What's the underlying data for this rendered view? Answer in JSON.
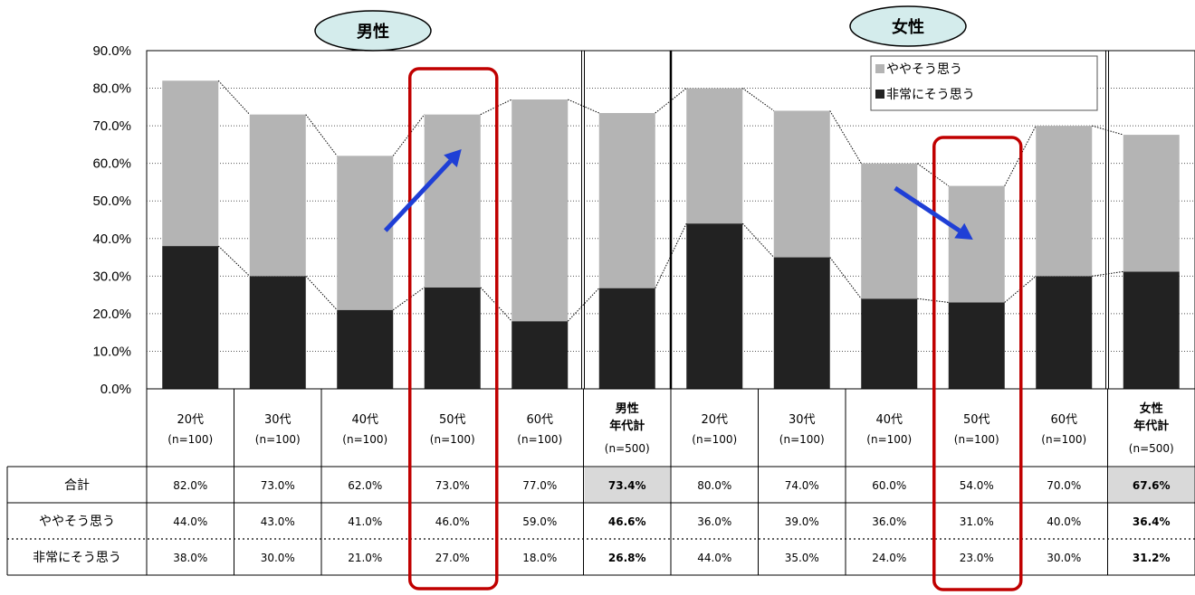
{
  "groups": [
    {
      "label": "男性",
      "total_label_line1": "男性",
      "total_label_line2": "年代計",
      "total_n": "(n=500)"
    },
    {
      "label": "女性",
      "total_label_line1": "女性",
      "total_label_line2": "年代計",
      "total_n": "(n=500)"
    }
  ],
  "legend": [
    {
      "label": "ややそう思う",
      "color": "#b4b4b4"
    },
    {
      "label": "非常にそう思う",
      "color": "#222222"
    }
  ],
  "row_labels": [
    "合計",
    "ややそう思う",
    "非常にそう思う"
  ],
  "colors": {
    "light": "#b4b4b4",
    "dark": "#222222",
    "highlight_border": "#c00000",
    "arrow": "#1f3fd6",
    "group_fill": "#d4ecec",
    "total_cell_fill": "#d9d9d9"
  },
  "chart_data": {
    "type": "bar",
    "stacked": true,
    "ylim": [
      0,
      90
    ],
    "yticks": [
      "0.0%",
      "10.0%",
      "20.0%",
      "30.0%",
      "40.0%",
      "50.0%",
      "60.0%",
      "70.0%",
      "80.0%",
      "90.0%"
    ],
    "categories": [
      {
        "age": "20代",
        "n": "(n=100)",
        "group": "男性"
      },
      {
        "age": "30代",
        "n": "(n=100)",
        "group": "男性"
      },
      {
        "age": "40代",
        "n": "(n=100)",
        "group": "男性"
      },
      {
        "age": "50代",
        "n": "(n=100)",
        "group": "男性"
      },
      {
        "age": "60代",
        "n": "(n=100)",
        "group": "男性"
      },
      {
        "age": "",
        "n": "",
        "group": "男性",
        "is_total": true
      },
      {
        "age": "20代",
        "n": "(n=100)",
        "group": "女性"
      },
      {
        "age": "30代",
        "n": "(n=100)",
        "group": "女性"
      },
      {
        "age": "40代",
        "n": "(n=100)",
        "group": "女性"
      },
      {
        "age": "50代",
        "n": "(n=100)",
        "group": "女性"
      },
      {
        "age": "60代",
        "n": "(n=100)",
        "group": "女性"
      },
      {
        "age": "",
        "n": "",
        "group": "女性",
        "is_total": true
      }
    ],
    "series": [
      {
        "name": "非常にそう思う",
        "values": [
          38.0,
          30.0,
          21.0,
          27.0,
          18.0,
          26.8,
          44.0,
          35.0,
          24.0,
          23.0,
          30.0,
          31.2
        ]
      },
      {
        "name": "ややそう思う",
        "values": [
          44.0,
          43.0,
          41.0,
          46.0,
          59.0,
          46.6,
          36.0,
          39.0,
          36.0,
          31.0,
          40.0,
          36.4
        ]
      }
    ],
    "table": {
      "合計": [
        "82.0%",
        "73.0%",
        "62.0%",
        "73.0%",
        "77.0%",
        "73.4%",
        "80.0%",
        "74.0%",
        "60.0%",
        "54.0%",
        "70.0%",
        "67.6%"
      ],
      "ややそう思う": [
        "44.0%",
        "43.0%",
        "41.0%",
        "46.0%",
        "59.0%",
        "46.6%",
        "36.0%",
        "39.0%",
        "36.0%",
        "31.0%",
        "40.0%",
        "36.4%"
      ],
      "非常にそう思う": [
        "38.0%",
        "30.0%",
        "21.0%",
        "27.0%",
        "18.0%",
        "26.8%",
        "44.0%",
        "35.0%",
        "24.0%",
        "23.0%",
        "30.0%",
        "31.2%"
      ]
    },
    "highlighted_categories": [
      3,
      9
    ],
    "arrows": [
      {
        "category": 3,
        "direction": "up"
      },
      {
        "category": 9,
        "direction": "down"
      }
    ],
    "grid": true,
    "legend_position": "top-right"
  }
}
